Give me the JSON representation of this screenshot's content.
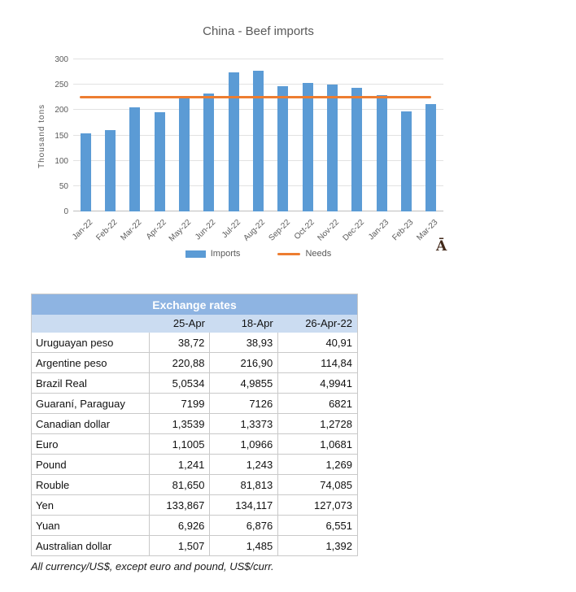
{
  "chart": {
    "title": "China - Beef imports",
    "y_axis_label": "Thousand tons",
    "legend": [
      {
        "label": "Imports",
        "swatch": "bar"
      },
      {
        "label": "Needs",
        "swatch": "line"
      }
    ],
    "side_glyph": "Ā"
  },
  "chart_data": {
    "type": "bar",
    "title": "China - Beef imports",
    "xlabel": "",
    "ylabel": "Thousand tons",
    "categories": [
      "Jan-22",
      "Feb-22",
      "Mar-22",
      "Apr-22",
      "May-22",
      "Jun-22",
      "Jul-22",
      "Aug-22",
      "Sep-22",
      "Oct-22",
      "Nov-22",
      "Dec-22",
      "Jan-23",
      "Feb-23",
      "Mar-23"
    ],
    "series": [
      {
        "name": "Imports",
        "type": "bar",
        "color": "#5B9BD5",
        "values": [
          154,
          160,
          206,
          196,
          224,
          233,
          274,
          277,
          247,
          253,
          250,
          244,
          230,
          197,
          211
        ]
      },
      {
        "name": "Needs",
        "type": "line",
        "color": "#ED7D31",
        "constant_value": 226
      }
    ],
    "ylim": [
      0,
      300
    ],
    "yticks": [
      0,
      50,
      100,
      150,
      200,
      250,
      300
    ],
    "grid": true,
    "legend_position": "bottom"
  },
  "table": {
    "title": "Exchange rates",
    "columns": [
      "",
      "25-Apr",
      "18-Apr",
      "26-Apr-22"
    ],
    "rows": [
      {
        "label": "Uruguayan peso",
        "values": [
          "38,72",
          "38,93",
          "40,91"
        ]
      },
      {
        "label": "Argentine peso",
        "values": [
          "220,88",
          "216,90",
          "114,84"
        ]
      },
      {
        "label": "Brazil Real",
        "values": [
          "5,0534",
          "4,9855",
          "4,9941"
        ]
      },
      {
        "label": "Guaraní, Paraguay",
        "values": [
          "7199",
          "7126",
          "6821"
        ]
      },
      {
        "label": "Canadian dollar",
        "values": [
          "1,3539",
          "1,3373",
          "1,2728"
        ]
      },
      {
        "label": "Euro",
        "values": [
          "1,1005",
          "1,0966",
          "1,0681"
        ]
      },
      {
        "label": "Pound",
        "values": [
          "1,241",
          "1,243",
          "1,269"
        ]
      },
      {
        "label": "Rouble",
        "values": [
          "81,650",
          "81,813",
          "74,085"
        ]
      },
      {
        "label": "Yen",
        "values": [
          "133,867",
          "134,117",
          "127,073"
        ]
      },
      {
        "label": "Yuan",
        "values": [
          "6,926",
          "6,876",
          "6,551"
        ]
      },
      {
        "label": "Australian dollar",
        "values": [
          "1,507",
          "1,485",
          "1,392"
        ]
      }
    ],
    "footnote": "All currency/US$, except euro and pound, US$/curr."
  },
  "colors": {
    "bar": "#5B9BD5",
    "needs_line": "#ED7D31",
    "grid": "#E2E2E2",
    "axis": "#BFBFBF",
    "chart_text": "#595959",
    "table_header_bg": "#8EB4E2",
    "table_subheader_bg": "#CBDCF1",
    "table_border": "#C9C9C9",
    "side_glyph": "#42291A"
  }
}
